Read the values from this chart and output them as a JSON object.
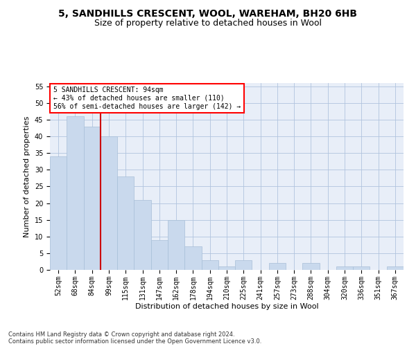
{
  "title1": "5, SANDHILLS CRESCENT, WOOL, WAREHAM, BH20 6HB",
  "title2": "Size of property relative to detached houses in Wool",
  "xlabel": "Distribution of detached houses by size in Wool",
  "ylabel": "Number of detached properties",
  "categories": [
    "52sqm",
    "68sqm",
    "84sqm",
    "99sqm",
    "115sqm",
    "131sqm",
    "147sqm",
    "162sqm",
    "178sqm",
    "194sqm",
    "210sqm",
    "225sqm",
    "241sqm",
    "257sqm",
    "273sqm",
    "288sqm",
    "304sqm",
    "320sqm",
    "336sqm",
    "351sqm",
    "367sqm"
  ],
  "values": [
    34,
    46,
    43,
    40,
    28,
    21,
    9,
    15,
    7,
    3,
    1,
    3,
    0,
    2,
    0,
    2,
    0,
    1,
    1,
    0,
    1
  ],
  "bar_color": "#c9d9ed",
  "bar_edge_color": "#a8bfd8",
  "bar_width": 1.0,
  "red_line_index": 2.5,
  "annotation_text": "5 SANDHILLS CRESCENT: 94sqm\n← 43% of detached houses are smaller (110)\n56% of semi-detached houses are larger (142) →",
  "annotation_box_color": "white",
  "annotation_box_edge_color": "red",
  "red_line_color": "#cc0000",
  "ylim": [
    0,
    56
  ],
  "yticks": [
    0,
    5,
    10,
    15,
    20,
    25,
    30,
    35,
    40,
    45,
    50,
    55
  ],
  "grid_color": "#b0c4de",
  "background_color": "#e8eef8",
  "footer1": "Contains HM Land Registry data © Crown copyright and database right 2024.",
  "footer2": "Contains public sector information licensed under the Open Government Licence v3.0.",
  "title1_fontsize": 10,
  "title2_fontsize": 9,
  "tick_fontsize": 7,
  "ylabel_fontsize": 8,
  "xlabel_fontsize": 8,
  "annotation_fontsize": 7,
  "footer_fontsize": 6
}
